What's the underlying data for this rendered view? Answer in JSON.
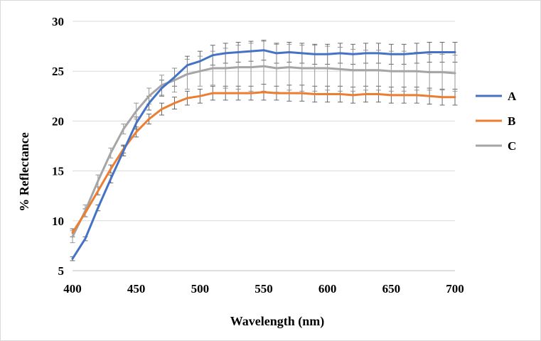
{
  "chart_data": {
    "type": "line",
    "title": "",
    "xlabel": "Wavelength (nm)",
    "ylabel": "% Reflectance",
    "xlim": [
      400,
      700
    ],
    "ylim": [
      5,
      30
    ],
    "xticks": [
      400,
      450,
      500,
      550,
      600,
      650,
      700
    ],
    "yticks": [
      5,
      10,
      15,
      20,
      25,
      30
    ],
    "grid": "horizontal",
    "legend_position": "right",
    "x": [
      400,
      410,
      420,
      430,
      440,
      450,
      460,
      470,
      480,
      490,
      500,
      510,
      520,
      530,
      540,
      550,
      560,
      570,
      580,
      590,
      600,
      610,
      620,
      630,
      640,
      650,
      660,
      670,
      680,
      690,
      700
    ],
    "series": [
      {
        "name": "A",
        "color": "#4472C4",
        "values": [
          6.2,
          8.2,
          11.3,
          14.2,
          17.0,
          19.8,
          21.8,
          23.3,
          24.4,
          25.6,
          26.0,
          26.6,
          26.8,
          26.9,
          27.0,
          27.1,
          26.8,
          26.9,
          26.8,
          26.7,
          26.7,
          26.8,
          26.7,
          26.8,
          26.8,
          26.7,
          26.7,
          26.8,
          26.9,
          26.9,
          26.9
        ],
        "errors": [
          0.2,
          0.2,
          0.3,
          0.4,
          0.5,
          0.6,
          0.7,
          0.8,
          0.9,
          0.9,
          1.0,
          1.0,
          1.0,
          1.0,
          1.0,
          1.0,
          1.0,
          1.0,
          1.0,
          1.0,
          1.0,
          1.0,
          1.0,
          1.0,
          1.0,
          1.0,
          1.0,
          1.0,
          1.0,
          1.0,
          1.0
        ]
      },
      {
        "name": "B",
        "color": "#ED7D31",
        "values": [
          8.8,
          10.8,
          13.0,
          15.2,
          17.2,
          18.9,
          20.2,
          21.2,
          21.8,
          22.3,
          22.5,
          22.8,
          22.8,
          22.8,
          22.8,
          22.9,
          22.8,
          22.8,
          22.8,
          22.7,
          22.7,
          22.7,
          22.6,
          22.7,
          22.7,
          22.6,
          22.6,
          22.6,
          22.5,
          22.4,
          22.4
        ],
        "errors": [
          0.4,
          0.4,
          0.4,
          0.4,
          0.4,
          0.5,
          0.5,
          0.6,
          0.6,
          0.7,
          0.7,
          0.7,
          0.7,
          0.7,
          0.7,
          0.8,
          0.7,
          0.8,
          0.8,
          0.8,
          0.8,
          0.8,
          0.8,
          0.8,
          0.8,
          0.8,
          0.8,
          0.8,
          0.8,
          0.8,
          0.8
        ]
      },
      {
        "name": "C",
        "color": "#A5A5A5",
        "values": [
          8.4,
          11.0,
          14.0,
          16.8,
          19.2,
          21.0,
          22.5,
          23.6,
          24.1,
          24.7,
          25.0,
          25.3,
          25.3,
          25.4,
          25.4,
          25.5,
          25.3,
          25.4,
          25.3,
          25.3,
          25.3,
          25.2,
          25.1,
          25.1,
          25.1,
          25.0,
          25.0,
          25.0,
          24.9,
          24.9,
          24.8
        ],
        "errors": [
          0.6,
          0.6,
          0.6,
          0.5,
          0.5,
          0.8,
          0.8,
          1.0,
          1.2,
          1.5,
          1.5,
          1.7,
          2.0,
          2.2,
          2.4,
          2.5,
          2.4,
          2.3,
          2.3,
          2.3,
          2.2,
          2.2,
          2.1,
          2.0,
          2.0,
          2.0,
          2.0,
          1.9,
          1.8,
          1.8,
          1.8
        ]
      }
    ]
  }
}
